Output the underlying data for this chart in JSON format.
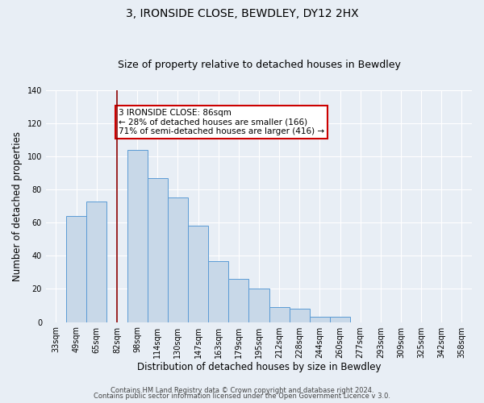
{
  "title": "3, IRONSIDE CLOSE, BEWDLEY, DY12 2HX",
  "subtitle": "Size of property relative to detached houses in Bewdley",
  "xlabel": "Distribution of detached houses by size in Bewdley",
  "ylabel": "Number of detached properties",
  "bin_labels": [
    "33sqm",
    "49sqm",
    "65sqm",
    "82sqm",
    "98sqm",
    "114sqm",
    "130sqm",
    "147sqm",
    "163sqm",
    "179sqm",
    "195sqm",
    "212sqm",
    "228sqm",
    "244sqm",
    "260sqm",
    "277sqm",
    "293sqm",
    "309sqm",
    "325sqm",
    "342sqm",
    "358sqm"
  ],
  "bar_values": [
    0,
    64,
    73,
    0,
    104,
    87,
    75,
    58,
    37,
    26,
    20,
    9,
    8,
    3,
    3,
    0,
    0,
    0,
    0,
    0,
    0
  ],
  "ylim": [
    0,
    140
  ],
  "yticks": [
    0,
    20,
    40,
    60,
    80,
    100,
    120,
    140
  ],
  "bar_color": "#c8d8e8",
  "bar_edge_color": "#5b9bd5",
  "vline_x_index": 3,
  "vline_color": "#8b0000",
  "annotation_text": "3 IRONSIDE CLOSE: 86sqm\n← 28% of detached houses are smaller (166)\n71% of semi-detached houses are larger (416) →",
  "annotation_box_color": "#ffffff",
  "annotation_box_edge": "#cc0000",
  "footer_line1": "Contains HM Land Registry data © Crown copyright and database right 2024.",
  "footer_line2": "Contains public sector information licensed under the Open Government Licence v 3.0.",
  "background_color": "#e8eef5",
  "grid_color": "#ffffff",
  "title_fontsize": 10,
  "subtitle_fontsize": 9,
  "axis_label_fontsize": 8.5,
  "tick_fontsize": 7,
  "footer_fontsize": 6,
  "annot_fontsize": 7.5
}
